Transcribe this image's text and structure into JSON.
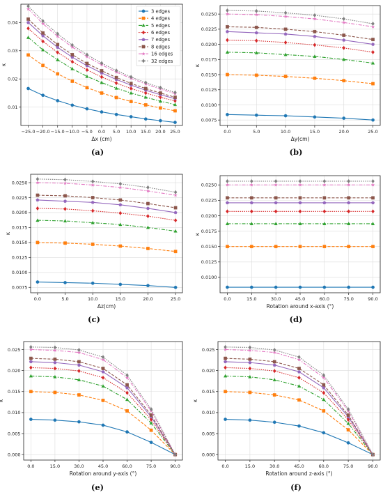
{
  "figure": {
    "legend": [
      "3 edges",
      "4 edges",
      "5 edges",
      "6 edges",
      "7 edges",
      "8 edges",
      "16 edges",
      "32 edges"
    ]
  },
  "series_style": [
    {
      "color": "#1f77b4",
      "dash": "",
      "marker": "circle"
    },
    {
      "color": "#ff7f0e",
      "dash": "4,2",
      "marker": "square"
    },
    {
      "color": "#2ca02c",
      "dash": "5,2,1.5,2",
      "marker": "triangle"
    },
    {
      "color": "#d62728",
      "dash": "1.5,1.5",
      "marker": "diamond"
    },
    {
      "color": "#9467bd",
      "dash": "",
      "marker": "pentagon"
    },
    {
      "color": "#8c564b",
      "dash": "4,2",
      "marker": "square"
    },
    {
      "color": "#e377c2",
      "dash": "5,2,1.5,2",
      "marker": "star"
    },
    {
      "color": "#7f7f7f",
      "dash": "1.5,1.5",
      "marker": "diamond"
    }
  ],
  "chart_data": [
    {
      "type": "line",
      "caption": "(a)",
      "xlabel": "Δx (cm)",
      "ylabel": "κ",
      "x": [
        -25,
        -20,
        -15,
        -10,
        -5,
        0,
        5,
        10,
        15,
        20,
        25
      ],
      "xticks": [
        -25,
        -20,
        -15,
        -10,
        -5,
        0,
        5,
        10,
        15,
        20,
        25
      ],
      "xticklabels": [
        "−25.0",
        "−20.0",
        "−15.0",
        "−10.0",
        "−5.0",
        "0.0",
        "5.0",
        "10.0",
        "15.0",
        "20.0",
        "25.0"
      ],
      "xlim": [
        -27.5,
        27.5
      ],
      "ylim": [
        0.0035,
        0.0465
      ],
      "yticks": [
        0.01,
        0.02,
        0.03,
        0.04
      ],
      "yticklabels": [
        "0.01",
        "0.02",
        "0.03",
        "0.04"
      ],
      "legend": true,
      "legend_location": "top-right",
      "grid": true,
      "series": [
        {
          "name": "3 edges",
          "values": [
            0.0166,
            0.0142,
            0.0123,
            0.0107,
            0.0094,
            0.0083,
            0.0074,
            0.0066,
            0.0058,
            0.0052,
            0.0046
          ]
        },
        {
          "name": "4 edges",
          "values": [
            0.0285,
            0.0248,
            0.0218,
            0.0192,
            0.0169,
            0.015,
            0.0134,
            0.012,
            0.0108,
            0.0097,
            0.0087
          ]
        },
        {
          "name": "5 edges",
          "values": [
            0.0347,
            0.0303,
            0.0268,
            0.0236,
            0.0209,
            0.0187,
            0.0167,
            0.015,
            0.0135,
            0.0121,
            0.0109
          ]
        },
        {
          "name": "6 edges",
          "values": [
            0.0379,
            0.0333,
            0.0294,
            0.0261,
            0.0232,
            0.0207,
            0.0185,
            0.0166,
            0.015,
            0.0135,
            0.0122
          ]
        },
        {
          "name": "7 edges",
          "values": [
            0.04,
            0.0353,
            0.0312,
            0.0277,
            0.0247,
            0.0221,
            0.0198,
            0.0178,
            0.016,
            0.0144,
            0.013
          ]
        },
        {
          "name": "8 edges",
          "values": [
            0.0412,
            0.0363,
            0.0322,
            0.0286,
            0.0255,
            0.0229,
            0.0205,
            0.0184,
            0.0166,
            0.015,
            0.0135
          ]
        },
        {
          "name": "16 edges",
          "values": [
            0.0448,
            0.0396,
            0.0351,
            0.0313,
            0.0279,
            0.025,
            0.0224,
            0.0202,
            0.0182,
            0.0164,
            0.0148
          ]
        },
        {
          "name": "32 edges",
          "values": [
            0.0458,
            0.0405,
            0.036,
            0.032,
            0.0286,
            0.0256,
            0.023,
            0.0207,
            0.0187,
            0.0169,
            0.0152
          ]
        }
      ]
    },
    {
      "type": "line",
      "caption": "(b)",
      "xlabel": "Δy(cm)",
      "ylabel": "κ",
      "x": [
        0,
        5,
        10,
        15,
        20,
        25
      ],
      "xticks": [
        0,
        5,
        10,
        15,
        20,
        25
      ],
      "xticklabels": [
        "0.0",
        "5.0",
        "10.0",
        "15.0",
        "20.0",
        "25.0"
      ],
      "xlim": [
        -1.25,
        26.25
      ],
      "ylim": [
        0.0066,
        0.0264
      ],
      "yticks": [
        0.0075,
        0.01,
        0.0125,
        0.015,
        0.0175,
        0.02,
        0.0225,
        0.025
      ],
      "yticklabels": [
        "0.0075",
        "0.0100",
        "0.0125",
        "0.0150",
        "0.0175",
        "0.0200",
        "0.0225",
        "0.0250"
      ],
      "legend": false,
      "grid": true,
      "series": [
        {
          "name": "3 edges",
          "values": [
            0.0084,
            0.0083,
            0.0082,
            0.008,
            0.0078,
            0.0075
          ]
        },
        {
          "name": "4 edges",
          "values": [
            0.015,
            0.0149,
            0.0147,
            0.0144,
            0.014,
            0.0135
          ]
        },
        {
          "name": "5 edges",
          "values": [
            0.0187,
            0.0186,
            0.0183,
            0.018,
            0.0175,
            0.0169
          ]
        },
        {
          "name": "6 edges",
          "values": [
            0.0207,
            0.0206,
            0.0203,
            0.0199,
            0.0194,
            0.0187
          ]
        },
        {
          "name": "7 edges",
          "values": [
            0.0221,
            0.0219,
            0.0217,
            0.0213,
            0.0207,
            0.02
          ]
        },
        {
          "name": "8 edges",
          "values": [
            0.0229,
            0.0228,
            0.0225,
            0.0221,
            0.0215,
            0.0208
          ]
        },
        {
          "name": "16 edges",
          "values": [
            0.025,
            0.0249,
            0.0246,
            0.0242,
            0.0236,
            0.0229
          ]
        },
        {
          "name": "32 edges",
          "values": [
            0.0256,
            0.0255,
            0.0252,
            0.0248,
            0.0242,
            0.0234
          ]
        }
      ]
    },
    {
      "type": "line",
      "caption": "(c)",
      "xlabel": "Δz(cm)",
      "ylabel": "κ",
      "x": [
        0,
        5,
        10,
        15,
        20,
        25
      ],
      "xticks": [
        0,
        5,
        10,
        15,
        20,
        25
      ],
      "xticklabels": [
        "0.0",
        "5.0",
        "10.0",
        "15.0",
        "20.0",
        "25.0"
      ],
      "xlim": [
        -1.25,
        26.25
      ],
      "ylim": [
        0.0066,
        0.0264
      ],
      "yticks": [
        0.0075,
        0.01,
        0.0125,
        0.015,
        0.0175,
        0.02,
        0.0225,
        0.025
      ],
      "yticklabels": [
        "0.0075",
        "0.0100",
        "0.0125",
        "0.0150",
        "0.0175",
        "0.0200",
        "0.0225",
        "0.0250"
      ],
      "legend": false,
      "grid": true,
      "series": [
        {
          "name": "3 edges",
          "values": [
            0.0084,
            0.0083,
            0.0082,
            0.008,
            0.0078,
            0.0075
          ]
        },
        {
          "name": "4 edges",
          "values": [
            0.015,
            0.0149,
            0.0147,
            0.0144,
            0.014,
            0.0135
          ]
        },
        {
          "name": "5 edges",
          "values": [
            0.0187,
            0.0186,
            0.0183,
            0.018,
            0.0175,
            0.0169
          ]
        },
        {
          "name": "6 edges",
          "values": [
            0.0207,
            0.0206,
            0.0203,
            0.0199,
            0.0194,
            0.0187
          ]
        },
        {
          "name": "7 edges",
          "values": [
            0.0221,
            0.0219,
            0.0217,
            0.0213,
            0.0207,
            0.02
          ]
        },
        {
          "name": "8 edges",
          "values": [
            0.0229,
            0.0228,
            0.0225,
            0.0221,
            0.0215,
            0.0208
          ]
        },
        {
          "name": "16 edges",
          "values": [
            0.025,
            0.0249,
            0.0246,
            0.0242,
            0.0236,
            0.0229
          ]
        },
        {
          "name": "32 edges",
          "values": [
            0.0256,
            0.0255,
            0.0252,
            0.0248,
            0.0242,
            0.0234
          ]
        }
      ]
    },
    {
      "type": "line",
      "caption": "(d)",
      "xlabel": "Rotation around x-axis (°)",
      "ylabel": "κ",
      "x": [
        0,
        15,
        30,
        45,
        60,
        75,
        90
      ],
      "xticks": [
        0,
        15,
        30,
        45,
        60,
        75,
        90
      ],
      "xticklabels": [
        "0.0",
        "15.0",
        "30.0",
        "45.0",
        "60.0",
        "75.0",
        "90.0"
      ],
      "xlim": [
        -4.5,
        94.5
      ],
      "ylim": [
        0.0075,
        0.0265
      ],
      "yticks": [
        0.01,
        0.0125,
        0.015,
        0.0175,
        0.02,
        0.0225,
        0.025
      ],
      "yticklabels": [
        "0.0100",
        "0.0125",
        "0.0150",
        "0.0175",
        "0.0200",
        "0.0225",
        "0.0250"
      ],
      "legend": false,
      "grid": true,
      "series": [
        {
          "name": "3 edges",
          "values": [
            0.0084,
            0.0084,
            0.0084,
            0.0084,
            0.0084,
            0.0084,
            0.0084
          ]
        },
        {
          "name": "4 edges",
          "values": [
            0.015,
            0.015,
            0.015,
            0.015,
            0.015,
            0.015,
            0.015
          ]
        },
        {
          "name": "5 edges",
          "values": [
            0.0187,
            0.0187,
            0.0187,
            0.0187,
            0.0187,
            0.0187,
            0.0187
          ]
        },
        {
          "name": "6 edges",
          "values": [
            0.0207,
            0.0207,
            0.0207,
            0.0207,
            0.0207,
            0.0207,
            0.0207
          ]
        },
        {
          "name": "7 edges",
          "values": [
            0.0221,
            0.0221,
            0.0221,
            0.0221,
            0.0221,
            0.0221,
            0.0221
          ]
        },
        {
          "name": "8 edges",
          "values": [
            0.0229,
            0.0229,
            0.0229,
            0.0229,
            0.0229,
            0.0229,
            0.0229
          ]
        },
        {
          "name": "16 edges",
          "values": [
            0.025,
            0.025,
            0.025,
            0.025,
            0.025,
            0.025,
            0.025
          ]
        },
        {
          "name": "32 edges",
          "values": [
            0.0256,
            0.0256,
            0.0256,
            0.0256,
            0.0256,
            0.0256,
            0.0256
          ]
        }
      ]
    },
    {
      "type": "line",
      "caption": "(e)",
      "xlabel": "Rotation around y-axis (°)",
      "ylabel": "κ",
      "x": [
        0,
        15,
        30,
        45,
        60,
        75,
        90
      ],
      "xticks": [
        0,
        15,
        30,
        45,
        60,
        75,
        90
      ],
      "xticklabels": [
        "0.0",
        "15.0",
        "30.0",
        "45.0",
        "60.0",
        "75.0",
        "90.0"
      ],
      "xlim": [
        -4.5,
        94.5
      ],
      "ylim": [
        -0.0013,
        0.0269
      ],
      "yticks": [
        0,
        0.005,
        0.01,
        0.015,
        0.02,
        0.025
      ],
      "yticklabels": [
        "0.000",
        "0.005",
        "0.010",
        "0.015",
        "0.020",
        "0.025"
      ],
      "legend": false,
      "grid": true,
      "series": [
        {
          "name": "3 edges",
          "values": [
            0.0084,
            0.0082,
            0.0078,
            0.007,
            0.0054,
            0.0029,
            0.0
          ]
        },
        {
          "name": "4 edges",
          "values": [
            0.015,
            0.0148,
            0.0142,
            0.0129,
            0.0104,
            0.0058,
            0.0
          ]
        },
        {
          "name": "5 edges",
          "values": [
            0.0187,
            0.0185,
            0.0178,
            0.0163,
            0.0131,
            0.0075,
            0.0
          ]
        },
        {
          "name": "6 edges",
          "values": [
            0.0207,
            0.0205,
            0.0199,
            0.0183,
            0.0147,
            0.0083,
            0.0
          ]
        },
        {
          "name": "7 edges",
          "values": [
            0.0221,
            0.0219,
            0.0213,
            0.0197,
            0.0159,
            0.009,
            0.0
          ]
        },
        {
          "name": "8 edges",
          "values": [
            0.0229,
            0.0227,
            0.0221,
            0.0205,
            0.0166,
            0.0094,
            0.0
          ]
        },
        {
          "name": "16 edges",
          "values": [
            0.025,
            0.0248,
            0.0243,
            0.0226,
            0.0183,
            0.0104,
            0.0
          ]
        },
        {
          "name": "32 edges",
          "values": [
            0.0256,
            0.0255,
            0.0249,
            0.0232,
            0.0189,
            0.0108,
            0.0
          ]
        }
      ]
    },
    {
      "type": "line",
      "caption": "(f)",
      "xlabel": "Rotation around z-axis (°)",
      "ylabel": "κ",
      "x": [
        0,
        15,
        30,
        45,
        60,
        75,
        90
      ],
      "xticks": [
        0,
        15,
        30,
        45,
        60,
        75,
        90
      ],
      "xticklabels": [
        "0.0",
        "15.0",
        "30.0",
        "45.0",
        "60.0",
        "75.0",
        "90.0"
      ],
      "xlim": [
        -4.5,
        94.5
      ],
      "ylim": [
        -0.0013,
        0.0269
      ],
      "yticks": [
        0,
        0.005,
        0.01,
        0.015,
        0.02,
        0.025
      ],
      "yticklabels": [
        "0.000",
        "0.005",
        "0.010",
        "0.015",
        "0.020",
        "0.025"
      ],
      "legend": false,
      "grid": true,
      "series": [
        {
          "name": "3 edges",
          "values": [
            0.0084,
            0.0082,
            0.0077,
            0.0068,
            0.0052,
            0.0028,
            0.0
          ]
        },
        {
          "name": "4 edges",
          "values": [
            0.015,
            0.0148,
            0.0142,
            0.013,
            0.0104,
            0.0059,
            0.0
          ]
        },
        {
          "name": "5 edges",
          "values": [
            0.0187,
            0.0185,
            0.0178,
            0.0163,
            0.0131,
            0.0074,
            0.0
          ]
        },
        {
          "name": "6 edges",
          "values": [
            0.0207,
            0.0205,
            0.0199,
            0.0183,
            0.0147,
            0.0083,
            0.0
          ]
        },
        {
          "name": "7 edges",
          "values": [
            0.0221,
            0.0219,
            0.0213,
            0.0197,
            0.0159,
            0.009,
            0.0
          ]
        },
        {
          "name": "8 edges",
          "values": [
            0.0229,
            0.0227,
            0.0221,
            0.0205,
            0.0166,
            0.0094,
            0.0
          ]
        },
        {
          "name": "16 edges",
          "values": [
            0.025,
            0.0248,
            0.0243,
            0.0226,
            0.0183,
            0.0104,
            0.0
          ]
        },
        {
          "name": "32 edges",
          "values": [
            0.0256,
            0.0255,
            0.0249,
            0.0232,
            0.0189,
            0.0108,
            0.0
          ]
        }
      ]
    }
  ]
}
